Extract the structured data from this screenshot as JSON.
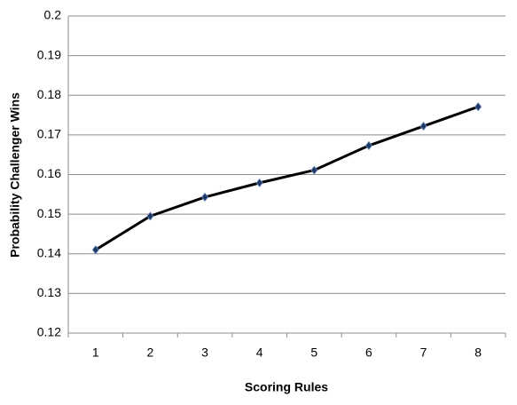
{
  "chart_data": {
    "type": "line",
    "x_label": "Scoring Rules",
    "y_label": "Probability Challenger Wins",
    "categories": [
      "1",
      "2",
      "3",
      "4",
      "5",
      "6",
      "7",
      "8"
    ],
    "values": [
      0.141,
      0.1495,
      0.1543,
      0.1579,
      0.1611,
      0.1673,
      0.1722,
      0.1771
    ],
    "color": "#000000",
    "marker_color": "#1f3864",
    "ylim": [
      0.12,
      0.2
    ],
    "yticks": [
      0.12,
      0.13,
      0.14,
      0.15,
      0.16,
      0.17,
      0.18,
      0.19,
      0.2
    ],
    "grid": true
  }
}
